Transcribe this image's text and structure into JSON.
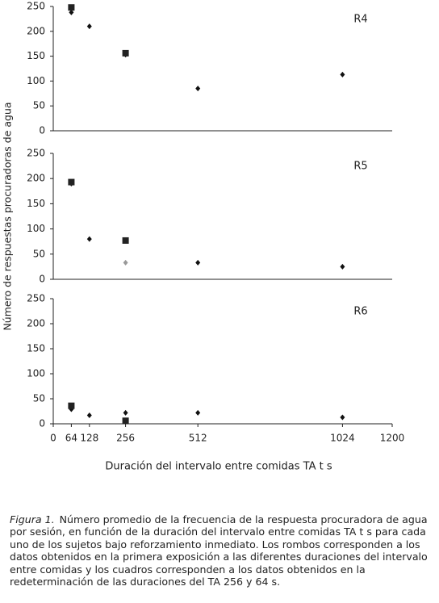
{
  "chart_data": [
    {
      "type": "scatter",
      "label": "R4",
      "xlim": [
        0,
        1200
      ],
      "ylim": [
        0,
        250
      ],
      "yticks": [
        0,
        50,
        100,
        150,
        200,
        250
      ],
      "series": [
        {
          "marker": "diamond",
          "color": "#111111",
          "x": [
            64,
            128,
            256,
            512,
            1024
          ],
          "values": [
            238,
            210,
            153,
            85,
            113
          ]
        },
        {
          "marker": "square",
          "color": "#222222",
          "x": [
            64,
            256
          ],
          "values": [
            248,
            156
          ]
        }
      ]
    },
    {
      "type": "scatter",
      "label": "R5",
      "ylabel": "Número de respuestas procuradoras de agua",
      "xlim": [
        0,
        1200
      ],
      "ylim": [
        0,
        250
      ],
      "yticks": [
        0,
        50,
        100,
        150,
        200,
        250
      ],
      "series": [
        {
          "marker": "diamond",
          "color": "#111111",
          "colors": [
            "#111111",
            "#111111",
            "#999999",
            "#111111",
            "#111111"
          ],
          "x": [
            64,
            128,
            256,
            512,
            1024
          ],
          "values": [
            190,
            80,
            33,
            33,
            25
          ]
        },
        {
          "marker": "square",
          "color": "#222222",
          "x": [
            64,
            256
          ],
          "values": [
            193,
            77
          ]
        }
      ]
    },
    {
      "type": "scatter",
      "label": "R6",
      "xlabel": "Duración del intervalo entre comidas TA t s",
      "xlim": [
        0,
        1200
      ],
      "xticks": [
        0,
        64,
        128,
        256,
        512,
        1024,
        1200
      ],
      "ylim": [
        0,
        250
      ],
      "yticks": [
        0,
        50,
        100,
        150,
        200,
        250
      ],
      "series": [
        {
          "marker": "diamond",
          "color": "#111111",
          "x": [
            64,
            128,
            256,
            512,
            1024
          ],
          "values": [
            29,
            17,
            22,
            22,
            13
          ]
        },
        {
          "marker": "square",
          "color": "#222222",
          "x": [
            64,
            256
          ],
          "values": [
            36,
            6
          ]
        }
      ]
    }
  ],
  "caption": {
    "label": "Figura 1.",
    "text": "Número promedio de la frecuencia de la respuesta procuradora de agua por sesión, en función de la duración del intervalo entre comidas TA t s para cada uno de los sujetos bajo reforzamiento inmediato. Los rombos corresponden a los datos obtenidos en la primera exposición a las diferentes duraciones del intervalo entre comidas y los cuadros corresponden a los datos obtenidos en la redeterminación de las duraciones del TA 256 y 64 s."
  }
}
